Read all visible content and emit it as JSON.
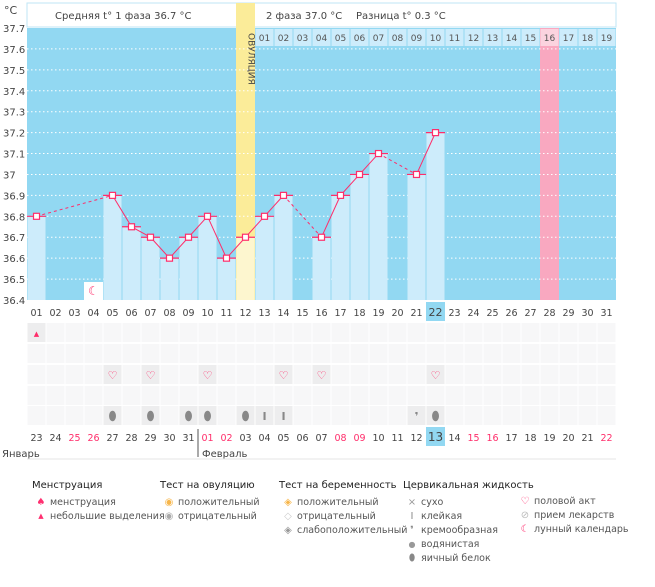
{
  "header": {
    "unit": "°C",
    "phase1": "Средняя t° 1 фаза 36.7 °C",
    "phase2": "2 фаза 37.0 °C",
    "difference": "Разница t° 0.3 °C",
    "ovulation_label": "ОВУЛЯЦИЯ"
  },
  "colors": {
    "bg": "#92d8f2",
    "bar": "#cdecfb",
    "ovulation": "#fbec99",
    "highlight": "#f9a8c0",
    "line": "#ff2d6a",
    "selected": "#92d8f2"
  },
  "chart_data": {
    "type": "line",
    "ylim": [
      36.4,
      37.7
    ],
    "yticks": [
      "37.7",
      "37.6",
      "37.5",
      "37.4",
      "37.3",
      "37.2",
      "37.1",
      "37",
      "36.9",
      "36.8",
      "36.7",
      "36.6",
      "36.5",
      "36.4"
    ],
    "cycle_days": [
      "01",
      "02",
      "03",
      "04",
      "05",
      "06",
      "07",
      "08",
      "09",
      "10",
      "11",
      "12",
      "13",
      "14",
      "15",
      "16",
      "17",
      "18",
      "19",
      "20",
      "21",
      "22",
      "23",
      "24",
      "25",
      "26",
      "27",
      "28",
      "29",
      "30",
      "31"
    ],
    "temperatures": [
      36.8,
      null,
      null,
      null,
      36.9,
      36.75,
      36.7,
      36.6,
      36.7,
      36.8,
      36.6,
      36.7,
      36.8,
      36.9,
      null,
      36.7,
      36.9,
      37.0,
      37.1,
      null,
      37.0,
      37.2,
      null,
      null,
      null,
      null,
      null,
      null,
      null,
      null,
      null
    ],
    "ovulation_day": 12,
    "phase2_days": [
      "01",
      "02",
      "03",
      "04",
      "05",
      "06",
      "07",
      "08",
      "09",
      "10",
      "11",
      "12",
      "13",
      "14",
      "15",
      "16",
      "17",
      "18",
      "19"
    ],
    "phase2_highlight_index": 15,
    "selected_day_index": 21,
    "moon_day_index": 3
  },
  "dates": [
    "23",
    "24",
    "25",
    "26",
    "27",
    "28",
    "29",
    "30",
    "31",
    "01",
    "02",
    "03",
    "04",
    "05",
    "06",
    "07",
    "08",
    "09",
    "10",
    "11",
    "12",
    "13",
    "14",
    "15",
    "16",
    "17",
    "18",
    "19",
    "20",
    "21",
    "22"
  ],
  "red_dates": [
    2,
    3,
    9,
    10,
    16,
    17,
    23,
    24,
    30
  ],
  "months": {
    "jan": "Январь",
    "feb": "Февраль"
  },
  "marks": {
    "menstruation": {
      "0": "spot"
    },
    "intercourse": [
      4,
      6,
      9,
      13,
      15,
      21
    ],
    "fluid": {
      "4": "egg",
      "6": "egg",
      "8": "egg",
      "9": "egg",
      "11": "egg",
      "12": "sticky",
      "13": "sticky",
      "20": "creamy",
      "21": "egg"
    }
  },
  "legend": {
    "menstruation": {
      "title": "Менструация",
      "items": [
        "менструация",
        "небольшие выделения"
      ]
    },
    "ovulation_test": {
      "title": "Тест на овуляцию",
      "items": [
        "положительный",
        "отрицательный"
      ]
    },
    "pregnancy_test": {
      "title": "Тест на беременность",
      "items": [
        "положительный",
        "отрицательный",
        "слабоположительный"
      ]
    },
    "fluid": {
      "title": "Цервикальная жидкость",
      "items": [
        "сухо",
        "клейкая",
        "кремообразная",
        "водянистая",
        "яичный белок"
      ]
    },
    "other": {
      "items": [
        "половой акт",
        "прием лекарств",
        "лунный календарь"
      ]
    }
  }
}
